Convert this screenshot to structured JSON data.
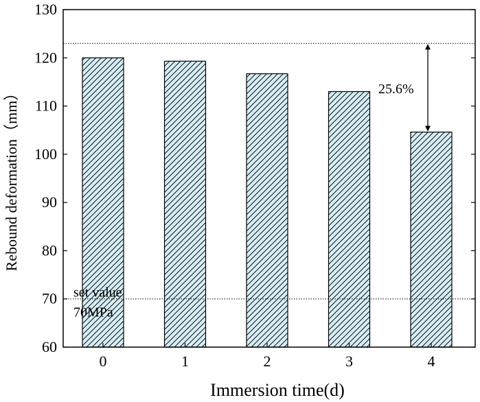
{
  "chart_data": {
    "type": "bar",
    "categories": [
      "0",
      "1",
      "2",
      "3",
      "4"
    ],
    "values": [
      120,
      119.3,
      116.7,
      113,
      104.6
    ],
    "xlabel": "Immersion time(d)",
    "ylabel": "Rebound deformation（mm）",
    "ylim": [
      60,
      130
    ],
    "yticks": [
      60,
      70,
      80,
      90,
      100,
      110,
      120,
      130
    ],
    "grid": false,
    "bar_fill": "#d6eef6",
    "bar_hatch": "diagonal",
    "reference_lines": [
      {
        "y": 123,
        "style": "dotted"
      },
      {
        "y": 70,
        "style": "dotted",
        "label_line1": "set value",
        "label_line2": "70MPa"
      }
    ],
    "annotation": {
      "text": "25.6%",
      "from_y": 123,
      "to_y": 104.6,
      "at_category": "4"
    }
  }
}
